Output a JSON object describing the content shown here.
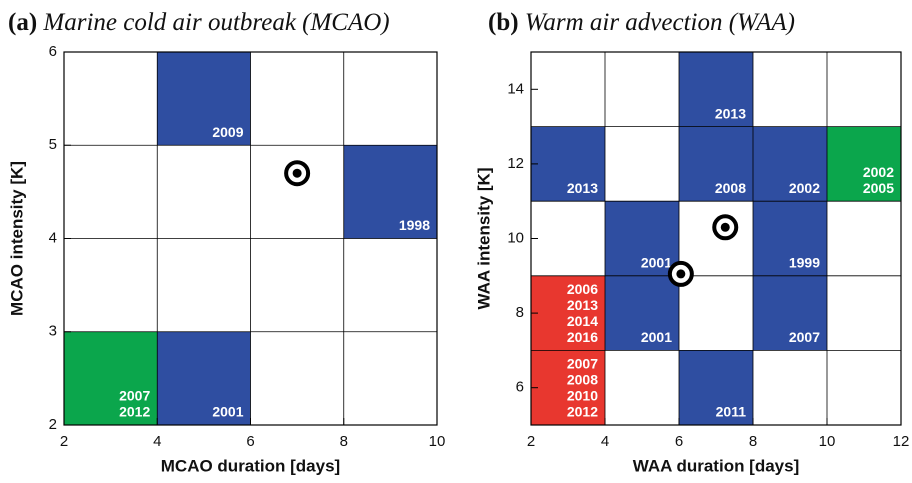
{
  "chart_data": [
    {
      "type": "heatmap-cells",
      "panel_label": "(a)",
      "title": "Marine cold air outbreak (MCAO)",
      "x_label": "MCAO duration [days]",
      "y_label": "MCAO intensity [K]",
      "xlim": [
        2,
        10
      ],
      "ylim": [
        2,
        6
      ],
      "xticks": [
        2,
        4,
        6,
        8,
        10
      ],
      "yticks": [
        2,
        3,
        4,
        5,
        6
      ],
      "grid": true,
      "cells": [
        {
          "x": [
            4,
            6
          ],
          "y": [
            5,
            6
          ],
          "color": "#2f4ea1",
          "labels": [
            "2009"
          ]
        },
        {
          "x": [
            8,
            10
          ],
          "y": [
            4,
            5
          ],
          "color": "#2f4ea1",
          "labels": [
            "1998"
          ]
        },
        {
          "x": [
            2,
            4
          ],
          "y": [
            2,
            3
          ],
          "color": "#0ba64c",
          "labels": [
            "2007",
            "2012"
          ]
        },
        {
          "x": [
            4,
            6
          ],
          "y": [
            2,
            3
          ],
          "color": "#2f4ea1",
          "labels": [
            "2001"
          ]
        }
      ],
      "points": {
        "x": [
          7
        ],
        "y": [
          4.7
        ],
        "color": "#000000"
      }
    },
    {
      "type": "heatmap-cells",
      "panel_label": "(b)",
      "title": "Warm air advection (WAA)",
      "x_label": "WAA duration [days]",
      "y_label": "WAA intensity [K]",
      "xlim": [
        2,
        12
      ],
      "ylim": [
        5,
        15
      ],
      "xticks": [
        2,
        4,
        6,
        8,
        10,
        12
      ],
      "yticks": [
        6,
        8,
        10,
        12,
        14
      ],
      "grid": true,
      "gridlines_y": [
        5,
        7,
        9,
        11,
        13,
        15
      ],
      "cells": [
        {
          "x": [
            6,
            8
          ],
          "y": [
            13,
            15
          ],
          "color": "#2f4ea1",
          "labels": [
            "2013"
          ]
        },
        {
          "x": [
            2,
            4
          ],
          "y": [
            11,
            13
          ],
          "color": "#2f4ea1",
          "labels": [
            "2013"
          ]
        },
        {
          "x": [
            6,
            8
          ],
          "y": [
            11,
            13
          ],
          "color": "#2f4ea1",
          "labels": [
            "2008"
          ]
        },
        {
          "x": [
            8,
            10
          ],
          "y": [
            11,
            13
          ],
          "color": "#2f4ea1",
          "labels": [
            "2002"
          ]
        },
        {
          "x": [
            10,
            12
          ],
          "y": [
            11,
            13
          ],
          "color": "#0ba64c",
          "labels": [
            "2002",
            "2005"
          ]
        },
        {
          "x": [
            4,
            6
          ],
          "y": [
            9,
            11
          ],
          "color": "#2f4ea1",
          "labels": [
            "2001"
          ]
        },
        {
          "x": [
            8,
            10
          ],
          "y": [
            9,
            11
          ],
          "color": "#2f4ea1",
          "labels": [
            "1999"
          ]
        },
        {
          "x": [
            2,
            4
          ],
          "y": [
            7,
            9
          ],
          "color": "#e8372f",
          "labels": [
            "2006",
            "2013",
            "2014",
            "2016"
          ]
        },
        {
          "x": [
            4,
            6
          ],
          "y": [
            7,
            9
          ],
          "color": "#2f4ea1",
          "labels": [
            "2001"
          ]
        },
        {
          "x": [
            8,
            10
          ],
          "y": [
            7,
            9
          ],
          "color": "#2f4ea1",
          "labels": [
            "2007"
          ]
        },
        {
          "x": [
            2,
            4
          ],
          "y": [
            5,
            7
          ],
          "color": "#e8372f",
          "labels": [
            "2007",
            "2008",
            "2010",
            "2012"
          ]
        },
        {
          "x": [
            6,
            8
          ],
          "y": [
            5,
            7
          ],
          "color": "#2f4ea1",
          "labels": [
            "2011"
          ]
        }
      ],
      "points": {
        "x": [
          6.05,
          7.25
        ],
        "y": [
          9.05,
          10.3
        ],
        "color": "#000000"
      }
    }
  ]
}
